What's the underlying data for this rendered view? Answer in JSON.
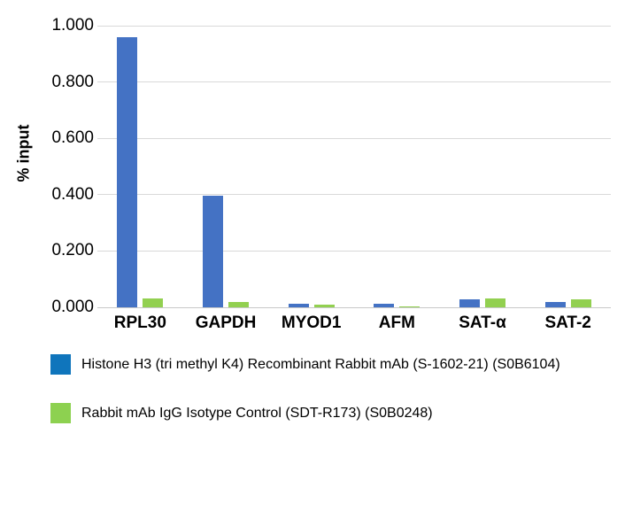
{
  "chart_data": {
    "type": "bar",
    "title": "",
    "xlabel": "",
    "ylabel": "% input",
    "ylim": [
      0,
      1.0
    ],
    "ytick_labels": [
      "0.000",
      "0.200",
      "0.400",
      "0.600",
      "0.800",
      "1.000"
    ],
    "grid": true,
    "legend_position": "bottom",
    "categories": [
      "RPL30",
      "GAPDH",
      "MYOD1",
      "AFM",
      "SAT-α",
      "SAT-2"
    ],
    "series": [
      {
        "name": "Histone H3 (tri methyl K4) Recombinant Rabbit mAb (S-1602-21) (S0B6104)",
        "color": "#4472c4",
        "values": [
          0.96,
          0.395,
          0.012,
          0.012,
          0.027,
          0.018
        ]
      },
      {
        "name": "Rabbit mAb IgG Isotype Control (SDT-R173) (S0B0248)",
        "color": "#92d050",
        "values": [
          0.03,
          0.018,
          0.009,
          0.003,
          0.031,
          0.028
        ]
      }
    ]
  },
  "legend": {
    "items": [
      {
        "label": "Histone H3 (tri methyl K4) Recombinant Rabbit mAb (S-1602-21) (S0B6104)",
        "swatch_color": "#0f75bc"
      },
      {
        "label": "Rabbit mAb IgG Isotype Control (SDT-R173) (S0B0248)",
        "swatch_color": "#8dd150"
      }
    ]
  },
  "colors": {
    "series_blue": "#4472c4",
    "series_green": "#92d050",
    "legend_blue": "#0f75bc",
    "legend_green": "#8dd150",
    "gridline": "#d9d9d9"
  }
}
